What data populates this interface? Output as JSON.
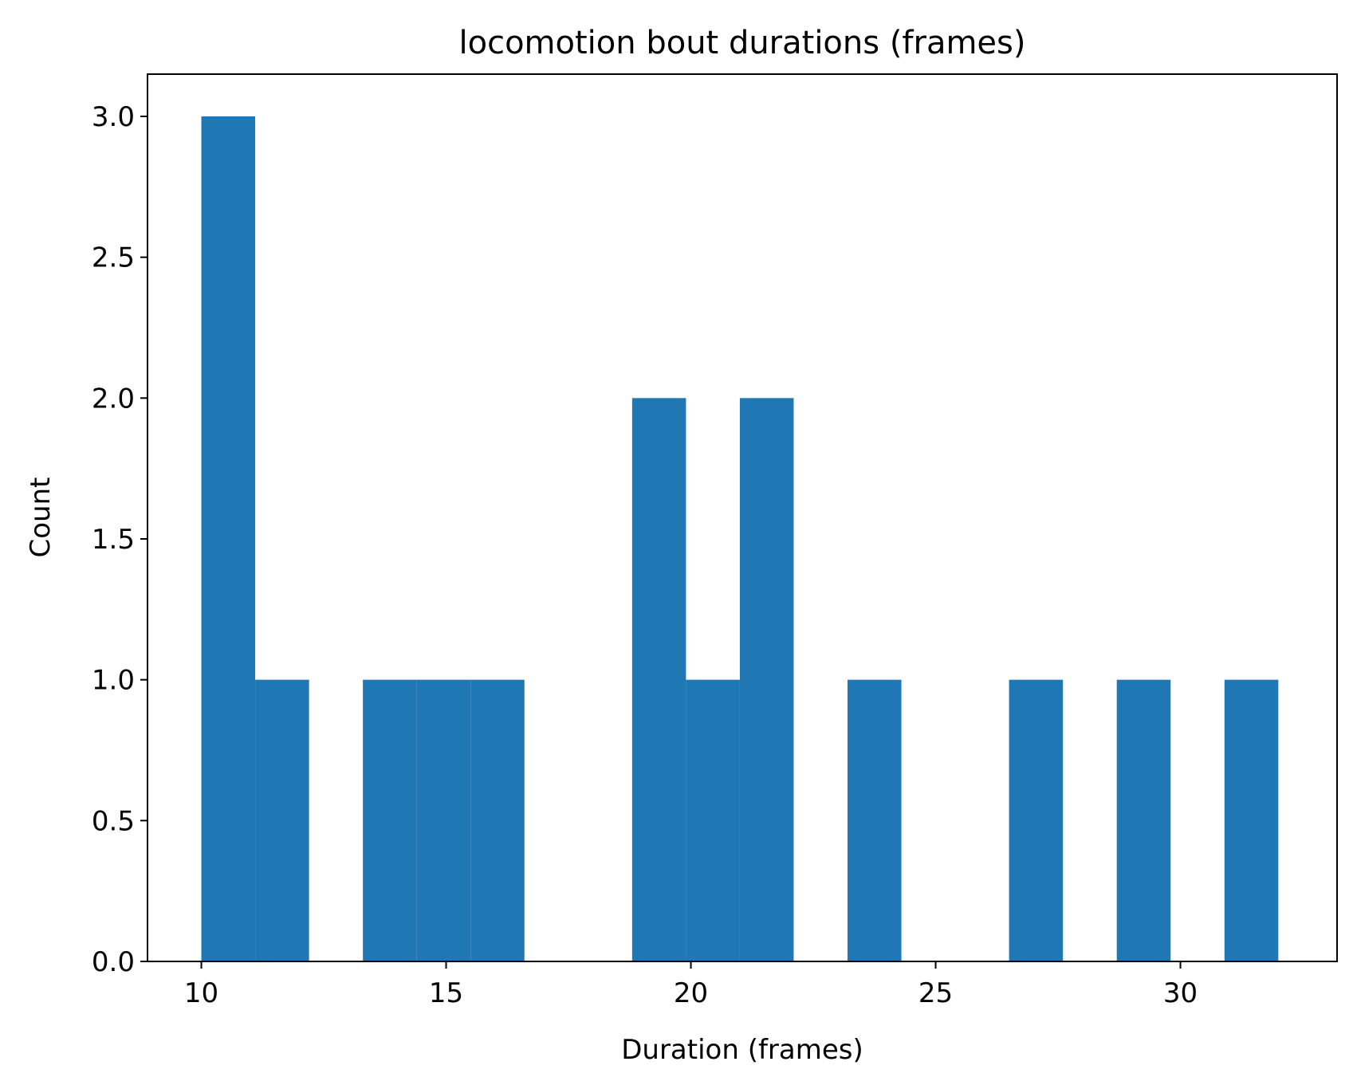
{
  "chart_data": {
    "type": "bar",
    "title": "locomotion bout durations (frames)",
    "xlabel": "Duration (frames)",
    "ylabel": "Count",
    "xlim": [
      8.9,
      33.2
    ],
    "ylim": [
      0,
      3.15
    ],
    "xticks": [
      10,
      15,
      20,
      25,
      30
    ],
    "xtick_labels": [
      "10",
      "15",
      "20",
      "25",
      "30"
    ],
    "yticks": [
      0,
      0.5,
      1,
      1.5,
      2,
      2.5,
      3
    ],
    "ytick_labels": [
      "0.0",
      "0.5",
      "1.0",
      "1.5",
      "2.0",
      "2.5",
      "3.0"
    ],
    "bin_edges": [
      10,
      11.1,
      12.2,
      13.3,
      14.4,
      15.5,
      16.6,
      17.7,
      18.8,
      19.9,
      21,
      22.1,
      23.2,
      24.3,
      25.4,
      26.5,
      27.6,
      28.7,
      29.8,
      30.9,
      32
    ],
    "counts": [
      3,
      1,
      0,
      1,
      1,
      1,
      0,
      0,
      2,
      1,
      2,
      0,
      1,
      0,
      0,
      1,
      0,
      1,
      0,
      1
    ],
    "bar_color": "#1f77b4",
    "grid": false,
    "legend": "none"
  }
}
